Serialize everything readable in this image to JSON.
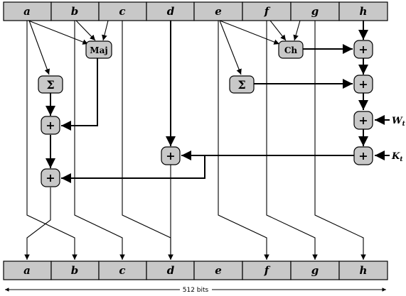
{
  "top_registers": [
    "a",
    "b",
    "c",
    "d",
    "e",
    "f",
    "g",
    "h"
  ],
  "bottom_registers": [
    "a",
    "b",
    "c",
    "d",
    "e",
    "f",
    "g",
    "h"
  ],
  "functions": {
    "maj": "Maj",
    "ch": "Ch",
    "sigma_a": "Σ",
    "sigma_e": "Σ"
  },
  "adder_symbol": "+",
  "inputs": {
    "w": {
      "base": "W",
      "sub": "t"
    },
    "k": {
      "base": "K",
      "sub": "t"
    }
  },
  "width_label": "512 bits"
}
